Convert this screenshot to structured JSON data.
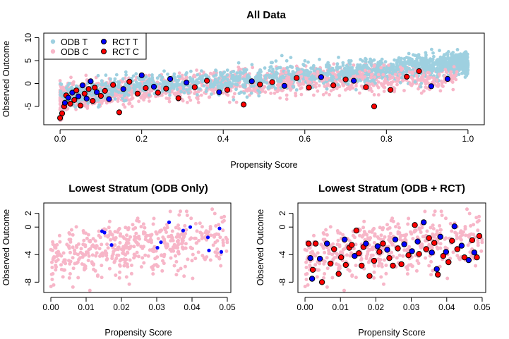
{
  "colors": {
    "odb_treated": "#9ed0e0",
    "odb_control": "#f7b6c8",
    "rct_treated": "#0000ff",
    "rct_control": "#ff0000",
    "rct_outline": "#000000"
  },
  "chart_data": [
    {
      "id": "all",
      "type": "scatter",
      "title": "All Data",
      "xlabel": "Propensity Score",
      "ylabel": "Observed Outcome",
      "xlim": [
        -0.04,
        1.04
      ],
      "ylim": [
        -9,
        11
      ],
      "xticks": [
        "0.0",
        "0.2",
        "0.4",
        "0.6",
        "0.8",
        "1.0"
      ],
      "xtick_values": [
        0,
        0.2,
        0.4,
        0.6,
        0.8,
        1.0
      ],
      "yticks": [
        "-5",
        "0",
        "5",
        "10"
      ],
      "ytick_values": [
        -5,
        0,
        5,
        10
      ],
      "legend": {
        "position": "top-left",
        "entries": [
          {
            "label": "ODB T",
            "series": "odb_treated"
          },
          {
            "label": "ODB C",
            "series": "odb_control"
          },
          {
            "label": "RCT T",
            "series": "rct_treated"
          },
          {
            "label": "RCT C",
            "series": "rct_control"
          }
        ]
      },
      "trend": {
        "description": "outcome rises roughly linearly with propensity score",
        "odb_control_mean": [
          [
            0,
            -3.2
          ],
          [
            0.2,
            -1.4
          ],
          [
            0.4,
            -0.2
          ],
          [
            0.6,
            0.8
          ],
          [
            0.8,
            1.3
          ],
          [
            0.95,
            1.6
          ]
        ],
        "odb_treated_mean": [
          [
            0,
            -2.8
          ],
          [
            0.2,
            -0.4
          ],
          [
            0.4,
            0.6
          ],
          [
            0.6,
            1.8
          ],
          [
            0.8,
            3.0
          ],
          [
            1.0,
            4.6
          ]
        ]
      },
      "rct_points": [
        {
          "group": "C",
          "x": 0.0,
          "y": -7.5
        },
        {
          "group": "C",
          "x": 0.005,
          "y": -6.5
        },
        {
          "group": "C",
          "x": 0.01,
          "y": -5.0
        },
        {
          "group": "T",
          "x": 0.012,
          "y": -4.2
        },
        {
          "group": "C",
          "x": 0.015,
          "y": -2.6
        },
        {
          "group": "T",
          "x": 0.02,
          "y": -3.1
        },
        {
          "group": "C",
          "x": 0.025,
          "y": -4.4
        },
        {
          "group": "T",
          "x": 0.03,
          "y": -2.0
        },
        {
          "group": "C",
          "x": 0.035,
          "y": -3.6
        },
        {
          "group": "C",
          "x": 0.04,
          "y": -1.5
        },
        {
          "group": "T",
          "x": 0.045,
          "y": -2.8
        },
        {
          "group": "C",
          "x": 0.05,
          "y": -4.8
        },
        {
          "group": "T",
          "x": 0.055,
          "y": -0.4
        },
        {
          "group": "C",
          "x": 0.06,
          "y": -2.2
        },
        {
          "group": "T",
          "x": 0.065,
          "y": -3.3
        },
        {
          "group": "C",
          "x": 0.07,
          "y": -1.2
        },
        {
          "group": "T",
          "x": 0.075,
          "y": 0.5
        },
        {
          "group": "C",
          "x": 0.08,
          "y": -3.8
        },
        {
          "group": "C",
          "x": 0.085,
          "y": -0.9
        },
        {
          "group": "T",
          "x": 0.09,
          "y": -1.9
        },
        {
          "group": "C",
          "x": 0.1,
          "y": -2.7
        },
        {
          "group": "C",
          "x": 0.11,
          "y": -1.6
        },
        {
          "group": "T",
          "x": 0.12,
          "y": -3.4
        },
        {
          "group": "C",
          "x": 0.13,
          "y": -0.3
        },
        {
          "group": "C",
          "x": 0.145,
          "y": -6.3
        },
        {
          "group": "T",
          "x": 0.155,
          "y": -1.2
        },
        {
          "group": "C",
          "x": 0.17,
          "y": 0.4
        },
        {
          "group": "C",
          "x": 0.19,
          "y": -2.2
        },
        {
          "group": "T",
          "x": 0.2,
          "y": 1.8
        },
        {
          "group": "C",
          "x": 0.21,
          "y": -1.0
        },
        {
          "group": "T",
          "x": 0.23,
          "y": -0.7
        },
        {
          "group": "C",
          "x": 0.24,
          "y": -2.0
        },
        {
          "group": "C",
          "x": 0.26,
          "y": -1.1
        },
        {
          "group": "T",
          "x": 0.27,
          "y": 1.0
        },
        {
          "group": "C",
          "x": 0.29,
          "y": -3.2
        },
        {
          "group": "T",
          "x": 0.31,
          "y": 0.2
        },
        {
          "group": "C",
          "x": 0.33,
          "y": -0.8
        },
        {
          "group": "C",
          "x": 0.36,
          "y": 0.6
        },
        {
          "group": "T",
          "x": 0.39,
          "y": -1.9
        },
        {
          "group": "C",
          "x": 0.41,
          "y": -1.4
        },
        {
          "group": "C",
          "x": 0.45,
          "y": -4.6
        },
        {
          "group": "T",
          "x": 0.47,
          "y": 0.5
        },
        {
          "group": "C",
          "x": 0.49,
          "y": -0.2
        },
        {
          "group": "C",
          "x": 0.52,
          "y": 0.3
        },
        {
          "group": "T",
          "x": 0.55,
          "y": -0.5
        },
        {
          "group": "C",
          "x": 0.58,
          "y": 1.2
        },
        {
          "group": "C",
          "x": 0.61,
          "y": -0.9
        },
        {
          "group": "T",
          "x": 0.64,
          "y": 1.4
        },
        {
          "group": "C",
          "x": 0.67,
          "y": -0.4
        },
        {
          "group": "C",
          "x": 0.7,
          "y": 0.9
        },
        {
          "group": "T",
          "x": 0.72,
          "y": 0.6
        },
        {
          "group": "C",
          "x": 0.75,
          "y": -0.8
        },
        {
          "group": "C",
          "x": 0.77,
          "y": -5.0
        },
        {
          "group": "C",
          "x": 0.81,
          "y": -1.4
        },
        {
          "group": "C",
          "x": 0.85,
          "y": 1.5
        },
        {
          "group": "C",
          "x": 0.88,
          "y": 2.7
        },
        {
          "group": "T",
          "x": 0.91,
          "y": -0.6
        },
        {
          "group": "T",
          "x": 0.95,
          "y": 1.0
        }
      ]
    },
    {
      "id": "low_odb",
      "type": "scatter",
      "title": "Lowest Stratum (ODB Only)",
      "xlabel": "Propensity Score",
      "ylabel": "Observed Outcome",
      "xlim": [
        -0.002,
        0.051
      ],
      "ylim": [
        -9.5,
        3.5
      ],
      "xticks": [
        "0.00",
        "0.01",
        "0.02",
        "0.03",
        "0.04",
        "0.05"
      ],
      "xtick_values": [
        0,
        0.01,
        0.02,
        0.03,
        0.04,
        0.05
      ],
      "yticks": [
        "-8",
        "-4",
        "0",
        "2"
      ],
      "ytick_values": [
        -8,
        -4,
        0,
        2
      ],
      "odb_treated_points": [
        {
          "x": 0.0145,
          "y": -0.6
        },
        {
          "x": 0.0152,
          "y": -0.8
        },
        {
          "x": 0.0172,
          "y": -2.6
        },
        {
          "x": 0.0302,
          "y": -3.0
        },
        {
          "x": 0.0312,
          "y": -2.2
        },
        {
          "x": 0.0335,
          "y": 0.7
        },
        {
          "x": 0.0375,
          "y": -0.5
        },
        {
          "x": 0.0395,
          "y": 0.0
        },
        {
          "x": 0.0445,
          "y": -1.5
        },
        {
          "x": 0.0448,
          "y": -3.4
        },
        {
          "x": 0.0478,
          "y": -0.2
        },
        {
          "x": 0.0483,
          "y": -3.6
        }
      ]
    },
    {
      "id": "low_rct",
      "type": "scatter",
      "title": "Lowest Stratum (ODB + RCT)",
      "xlabel": "Propensity Score",
      "ylabel": "Observed Outcome",
      "xlim": [
        -0.002,
        0.051
      ],
      "ylim": [
        -9.5,
        3.5
      ],
      "xticks": [
        "0.00",
        "0.01",
        "0.02",
        "0.03",
        "0.04",
        "0.05"
      ],
      "xtick_values": [
        0,
        0.01,
        0.02,
        0.03,
        0.04,
        0.05
      ],
      "yticks": [
        "-8",
        "-4",
        "0",
        "2"
      ],
      "ytick_values": [
        -8,
        -4,
        0,
        2
      ],
      "rct_points": [
        {
          "group": "C",
          "x": 0.001,
          "y": -2.4
        },
        {
          "group": "T",
          "x": 0.0015,
          "y": -4.5
        },
        {
          "group": "T",
          "x": 0.002,
          "y": -7.5
        },
        {
          "group": "C",
          "x": 0.0022,
          "y": -6.2
        },
        {
          "group": "C",
          "x": 0.003,
          "y": -2.4
        },
        {
          "group": "T",
          "x": 0.0042,
          "y": -4.6
        },
        {
          "group": "C",
          "x": 0.0048,
          "y": -8.0
        },
        {
          "group": "T",
          "x": 0.0062,
          "y": -2.4
        },
        {
          "group": "C",
          "x": 0.0072,
          "y": -5.3
        },
        {
          "group": "C",
          "x": 0.0082,
          "y": -3.2
        },
        {
          "group": "C",
          "x": 0.0095,
          "y": -6.8
        },
        {
          "group": "C",
          "x": 0.0102,
          "y": -4.4
        },
        {
          "group": "T",
          "x": 0.0112,
          "y": -1.8
        },
        {
          "group": "C",
          "x": 0.0115,
          "y": -5.5
        },
        {
          "group": "C",
          "x": 0.0125,
          "y": -3.0
        },
        {
          "group": "C",
          "x": 0.0132,
          "y": -2.6
        },
        {
          "group": "T",
          "x": 0.014,
          "y": -4.2
        },
        {
          "group": "C",
          "x": 0.0145,
          "y": -0.5
        },
        {
          "group": "C",
          "x": 0.0152,
          "y": -3.8
        },
        {
          "group": "C",
          "x": 0.016,
          "y": -5.6
        },
        {
          "group": "C",
          "x": 0.0165,
          "y": -2.9
        },
        {
          "group": "T",
          "x": 0.0172,
          "y": -2.4
        },
        {
          "group": "C",
          "x": 0.0182,
          "y": -7.1
        },
        {
          "group": "C",
          "x": 0.0195,
          "y": -4.9
        },
        {
          "group": "T",
          "x": 0.0205,
          "y": -2.8
        },
        {
          "group": "C",
          "x": 0.021,
          "y": -3.6
        },
        {
          "group": "C",
          "x": 0.022,
          "y": -2.4
        },
        {
          "group": "T",
          "x": 0.0232,
          "y": -3.3
        },
        {
          "group": "C",
          "x": 0.0238,
          "y": -4.5
        },
        {
          "group": "C",
          "x": 0.0248,
          "y": -5.6
        },
        {
          "group": "T",
          "x": 0.0255,
          "y": -1.8
        },
        {
          "group": "C",
          "x": 0.0262,
          "y": -3.1
        },
        {
          "group": "C",
          "x": 0.0272,
          "y": -5.4
        },
        {
          "group": "T",
          "x": 0.028,
          "y": -2.5
        },
        {
          "group": "C",
          "x": 0.0292,
          "y": -4.1
        },
        {
          "group": "T",
          "x": 0.0302,
          "y": -3.5
        },
        {
          "group": "C",
          "x": 0.031,
          "y": 0.3
        },
        {
          "group": "T",
          "x": 0.0318,
          "y": -2.1
        },
        {
          "group": "C",
          "x": 0.0322,
          "y": -3.9
        },
        {
          "group": "T",
          "x": 0.0335,
          "y": 0.7
        },
        {
          "group": "C",
          "x": 0.0342,
          "y": -3.2
        },
        {
          "group": "C",
          "x": 0.035,
          "y": -1.6
        },
        {
          "group": "T",
          "x": 0.0358,
          "y": -3.7
        },
        {
          "group": "C",
          "x": 0.0365,
          "y": -2.3
        },
        {
          "group": "T",
          "x": 0.0372,
          "y": -6.1
        },
        {
          "group": "C",
          "x": 0.0375,
          "y": -6.9
        },
        {
          "group": "T",
          "x": 0.0382,
          "y": -1.4
        },
        {
          "group": "C",
          "x": 0.039,
          "y": -4.2
        },
        {
          "group": "T",
          "x": 0.0398,
          "y": -3.6
        },
        {
          "group": "C",
          "x": 0.0405,
          "y": -5.1
        },
        {
          "group": "C",
          "x": 0.0415,
          "y": -2.0
        },
        {
          "group": "T",
          "x": 0.0422,
          "y": 0.1
        },
        {
          "group": "C",
          "x": 0.043,
          "y": -3.2
        },
        {
          "group": "T",
          "x": 0.0442,
          "y": -2.7
        },
        {
          "group": "C",
          "x": 0.045,
          "y": -4.4
        },
        {
          "group": "T",
          "x": 0.0462,
          "y": -4.8
        },
        {
          "group": "C",
          "x": 0.0472,
          "y": -1.9
        },
        {
          "group": "T",
          "x": 0.0478,
          "y": -3.7
        },
        {
          "group": "C",
          "x": 0.0485,
          "y": -4.4
        },
        {
          "group": "C",
          "x": 0.0492,
          "y": -1.3
        }
      ]
    }
  ]
}
